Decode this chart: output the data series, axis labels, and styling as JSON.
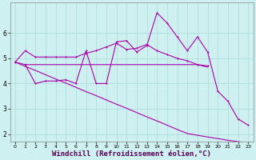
{
  "background_color": "#cff0f0",
  "grid_color": "#b0dede",
  "line_color": "#aa00aa",
  "xlabel": "Windchill (Refroidissement éolien,°C)",
  "xlim": [
    -0.5,
    23.5
  ],
  "ylim": [
    1.7,
    7.2
  ],
  "yticks": [
    2,
    3,
    4,
    5,
    6
  ],
  "xticks": [
    0,
    1,
    2,
    3,
    4,
    5,
    6,
    7,
    8,
    9,
    10,
    11,
    12,
    13,
    14,
    15,
    16,
    17,
    18,
    19,
    20,
    21,
    22,
    23
  ],
  "series1_x": [
    0,
    1,
    2,
    3,
    4,
    5,
    6,
    7,
    8,
    9,
    10,
    11,
    12,
    13,
    14,
    15,
    16,
    17,
    18,
    19
  ],
  "series1_y": [
    4.85,
    5.3,
    5.05,
    5.05,
    5.05,
    5.05,
    5.05,
    5.2,
    5.3,
    5.45,
    5.6,
    5.35,
    5.4,
    5.55,
    5.3,
    5.15,
    5.0,
    4.9,
    4.75,
    4.7
  ],
  "series2_x": [
    0,
    1,
    2,
    3,
    4,
    5,
    6,
    7,
    8,
    9,
    10,
    11,
    12,
    13,
    14,
    15,
    16,
    17,
    18,
    19
  ],
  "series2_y": [
    4.85,
    4.75,
    4.75,
    4.75,
    4.75,
    4.75,
    4.75,
    4.75,
    4.75,
    4.75,
    4.75,
    4.75,
    4.75,
    4.75,
    4.75,
    4.75,
    4.75,
    4.75,
    4.75,
    4.65
  ],
  "series3_x": [
    1,
    2,
    3,
    4,
    5,
    6,
    7,
    8,
    9,
    10,
    11,
    12,
    13,
    14,
    15,
    16,
    17,
    18,
    19,
    20,
    21,
    22,
    23
  ],
  "series3_y": [
    4.75,
    4.0,
    4.1,
    4.1,
    4.15,
    4.0,
    5.3,
    4.0,
    4.0,
    5.65,
    5.7,
    5.25,
    5.5,
    6.8,
    6.4,
    5.85,
    5.3,
    5.85,
    5.25,
    3.7,
    3.3,
    2.6,
    2.35
  ],
  "series4_x": [
    0,
    1,
    2,
    3,
    4,
    5,
    6,
    7,
    8,
    9,
    10,
    11,
    12,
    13,
    14,
    15,
    16,
    17,
    18,
    19,
    20,
    21,
    22,
    23
  ],
  "series4_y": [
    4.85,
    4.68,
    4.52,
    4.35,
    4.18,
    4.02,
    3.85,
    3.68,
    3.52,
    3.35,
    3.18,
    3.02,
    2.85,
    2.68,
    2.52,
    2.35,
    2.18,
    2.02,
    1.95,
    1.88,
    1.82,
    1.75,
    1.7,
    1.65
  ]
}
